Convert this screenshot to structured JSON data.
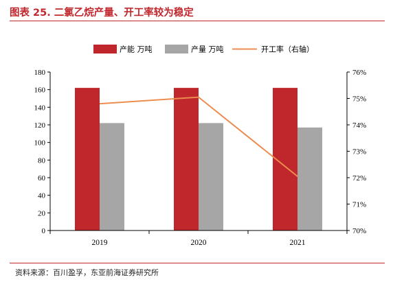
{
  "header": {
    "title": "图表 25. 二氯乙烷产量、开工率较为稳定"
  },
  "footer": {
    "source": "资料来源：百川盈孚，东亚前海证券研究所"
  },
  "colors": {
    "capacity": "#c0272d",
    "production": "#a6a6a6",
    "utilization": "#ec8c4f",
    "title": "#c0272d"
  },
  "chart_data": {
    "type": "bar",
    "title": "图表 25. 二氯乙烷产量、开工率较为稳定",
    "categories": [
      "2019",
      "2020",
      "2021"
    ],
    "series": [
      {
        "name": "产能 万吨",
        "type": "bar",
        "axis": "left",
        "values": [
          162,
          162,
          162
        ]
      },
      {
        "name": "产量 万吨",
        "type": "bar",
        "axis": "left",
        "values": [
          122,
          122,
          117
        ]
      },
      {
        "name": "开工率（右轴）",
        "type": "line",
        "axis": "right",
        "values": [
          74.8,
          75.05,
          72.05
        ]
      }
    ],
    "y_left": {
      "min": 0,
      "max": 180,
      "step": 20,
      "ticks": [
        "0",
        "20",
        "40",
        "60",
        "80",
        "100",
        "120",
        "140",
        "160",
        "180"
      ]
    },
    "y_right": {
      "min": 70,
      "max": 76,
      "step": 1,
      "ticks": [
        "70%",
        "71%",
        "72%",
        "73%",
        "74%",
        "75%",
        "76%"
      ]
    },
    "legend": {
      "position": "top",
      "items": [
        "产能 万吨",
        "产量 万吨",
        "开工率（右轴）"
      ]
    },
    "grid": false
  }
}
